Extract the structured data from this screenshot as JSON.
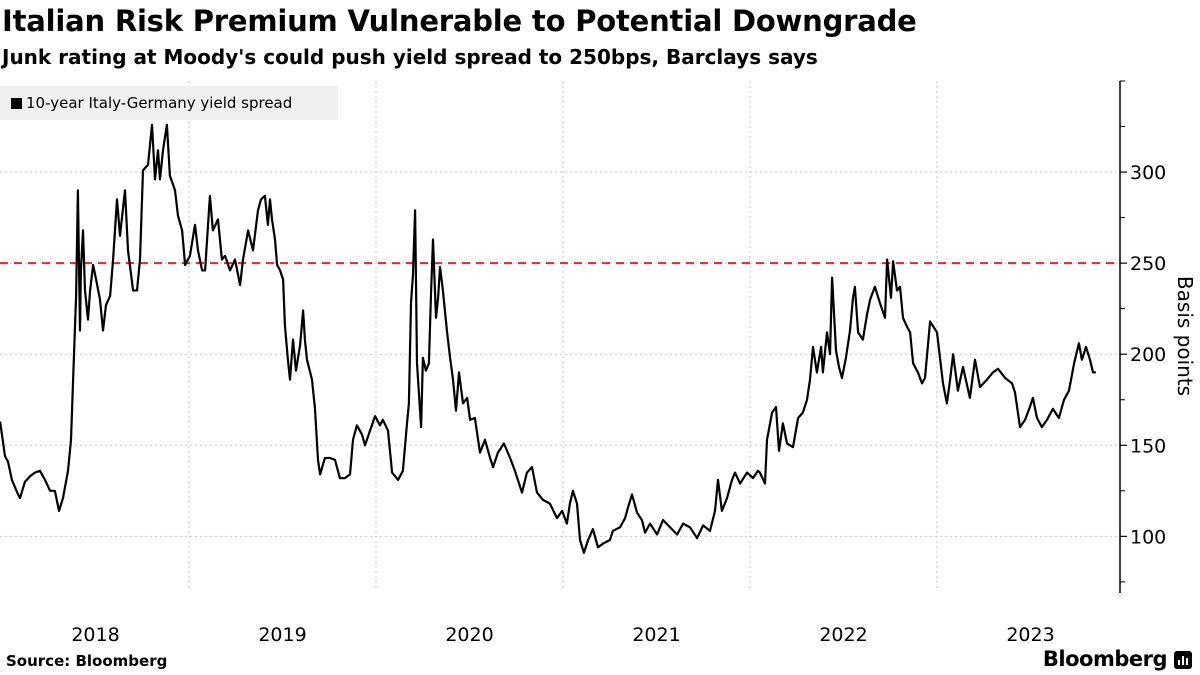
{
  "header": {
    "title": "Italian Risk Premium Vulnerable to Potential Downgrade",
    "subtitle": "Junk rating at Moody's could push yield spread to 250bps, Barclays says"
  },
  "footer": {
    "source": "Source: Bloomberg",
    "brand": "Bloomberg"
  },
  "colors": {
    "line": "#000000",
    "reference": "#e8262b",
    "grid": "#c8c8c8",
    "legend_bg": "#f0f0f0"
  },
  "chart_data": {
    "type": "line",
    "title": "Italian Risk Premium Vulnerable to Potential Downgrade",
    "subtitle": "Junk rating at Moody's could push yield spread to 250bps, Barclays says",
    "xlabel": "",
    "ylabel": "Basis points",
    "xlim": [
      2017.99,
      2023.9
    ],
    "ylim": [
      70,
      350
    ],
    "x_ticks": [
      2018,
      2019,
      2020,
      2021,
      2022,
      2023
    ],
    "x_tick_labels": [
      "2018",
      "2019",
      "2020",
      "2021",
      "2022",
      "2023"
    ],
    "y_ticks": [
      100,
      150,
      200,
      250,
      300
    ],
    "y_tick_labels": [
      "100",
      "150",
      "200",
      "250",
      "300"
    ],
    "y_minor_ticks": [
      75,
      125,
      175,
      225,
      275,
      325,
      350
    ],
    "grid": true,
    "legend": {
      "placement": "top-left",
      "entries": [
        "10-year Italy-Germany yield spread"
      ]
    },
    "reference_line": {
      "value": 250,
      "style": "dashed",
      "color": "#e8262b"
    },
    "series": [
      {
        "name": "10-year Italy-Germany yield spread",
        "points": [
          [
            2017.99,
            163
          ],
          [
            2018.016,
            144
          ],
          [
            2018.032,
            141
          ],
          [
            2018.053,
            131
          ],
          [
            2018.086,
            123
          ],
          [
            2018.096,
            121
          ],
          [
            2018.123,
            130
          ],
          [
            2018.15,
            133
          ],
          [
            2018.176,
            135
          ],
          [
            2018.203,
            136
          ],
          [
            2018.23,
            131
          ],
          [
            2018.257,
            125
          ],
          [
            2018.283,
            125
          ],
          [
            2018.305,
            114
          ],
          [
            2018.326,
            121
          ],
          [
            2018.353,
            136
          ],
          [
            2018.369,
            153
          ],
          [
            2018.38,
            186
          ],
          [
            2018.396,
            232
          ],
          [
            2018.406,
            290
          ],
          [
            2018.417,
            213
          ],
          [
            2018.422,
            246
          ],
          [
            2018.433,
            268
          ],
          [
            2018.444,
            235
          ],
          [
            2018.46,
            219
          ],
          [
            2018.471,
            235
          ],
          [
            2018.487,
            249
          ],
          [
            2018.503,
            241
          ],
          [
            2018.524,
            230
          ],
          [
            2018.54,
            213
          ],
          [
            2018.556,
            227
          ],
          [
            2018.578,
            232
          ],
          [
            2018.594,
            252
          ],
          [
            2018.615,
            285
          ],
          [
            2018.631,
            265
          ],
          [
            2018.658,
            290
          ],
          [
            2018.674,
            257
          ],
          [
            2018.701,
            235
          ],
          [
            2018.722,
            235
          ],
          [
            2018.738,
            252
          ],
          [
            2018.754,
            301
          ],
          [
            2018.781,
            304
          ],
          [
            2018.802,
            326
          ],
          [
            2018.818,
            296
          ],
          [
            2018.834,
            312
          ],
          [
            2018.845,
            296
          ],
          [
            2018.861,
            312
          ],
          [
            2018.882,
            326
          ],
          [
            2018.898,
            298
          ],
          [
            2018.925,
            290
          ],
          [
            2018.941,
            276
          ],
          [
            2018.963,
            268
          ],
          [
            2018.979,
            249
          ],
          [
            2019.005,
            254
          ],
          [
            2019.032,
            271
          ],
          [
            2019.048,
            257
          ],
          [
            2019.07,
            246
          ],
          [
            2019.086,
            246
          ],
          [
            2019.112,
            287
          ],
          [
            2019.128,
            268
          ],
          [
            2019.155,
            274
          ],
          [
            2019.176,
            252
          ],
          [
            2019.193,
            254
          ],
          [
            2019.219,
            246
          ],
          [
            2019.246,
            252
          ],
          [
            2019.273,
            238
          ],
          [
            2019.289,
            252
          ],
          [
            2019.316,
            268
          ],
          [
            2019.342,
            257
          ],
          [
            2019.369,
            279
          ],
          [
            2019.385,
            285
          ],
          [
            2019.406,
            287
          ],
          [
            2019.422,
            271
          ],
          [
            2019.433,
            285
          ],
          [
            2019.444,
            274
          ],
          [
            2019.46,
            263
          ],
          [
            2019.471,
            249
          ],
          [
            2019.487,
            246
          ],
          [
            2019.503,
            241
          ],
          [
            2019.513,
            216
          ],
          [
            2019.529,
            197
          ],
          [
            2019.54,
            186
          ],
          [
            2019.556,
            208
          ],
          [
            2019.572,
            191
          ],
          [
            2019.594,
            205
          ],
          [
            2019.61,
            224
          ],
          [
            2019.62,
            208
          ],
          [
            2019.631,
            197
          ],
          [
            2019.658,
            186
          ],
          [
            2019.674,
            170
          ],
          [
            2019.69,
            142
          ],
          [
            2019.701,
            134
          ],
          [
            2019.727,
            143
          ],
          [
            2019.754,
            143
          ],
          [
            2019.781,
            142
          ],
          [
            2019.807,
            132
          ],
          [
            2019.834,
            132
          ],
          [
            2019.861,
            134
          ],
          [
            2019.877,
            153
          ],
          [
            2019.898,
            161
          ],
          [
            2019.925,
            156
          ],
          [
            2019.941,
            150
          ],
          [
            2019.968,
            158
          ],
          [
            2019.995,
            166
          ],
          [
            2020.021,
            161
          ],
          [
            2020.037,
            164
          ],
          [
            2020.064,
            158
          ],
          [
            2020.086,
            135
          ],
          [
            2020.118,
            131
          ],
          [
            2020.144,
            136
          ],
          [
            2020.166,
            162
          ],
          [
            2020.176,
            173
          ],
          [
            2020.187,
            228
          ],
          [
            2020.198,
            244
          ],
          [
            2020.209,
            279
          ],
          [
            2020.219,
            195
          ],
          [
            2020.241,
            160
          ],
          [
            2020.251,
            198
          ],
          [
            2020.267,
            191
          ],
          [
            2020.283,
            195
          ],
          [
            2020.294,
            233
          ],
          [
            2020.305,
            263
          ],
          [
            2020.321,
            220
          ],
          [
            2020.332,
            231
          ],
          [
            2020.342,
            248
          ],
          [
            2020.358,
            235
          ],
          [
            2020.38,
            212
          ],
          [
            2020.396,
            198
          ],
          [
            2020.412,
            186
          ],
          [
            2020.428,
            169
          ],
          [
            2020.444,
            190
          ],
          [
            2020.465,
            173
          ],
          [
            2020.487,
            176
          ],
          [
            2020.503,
            164
          ],
          [
            2020.529,
            165
          ],
          [
            2020.556,
            146
          ],
          [
            2020.583,
            153
          ],
          [
            2020.61,
            143
          ],
          [
            2020.626,
            138
          ],
          [
            2020.652,
            146
          ],
          [
            2020.684,
            151
          ],
          [
            2020.717,
            143
          ],
          [
            2020.743,
            136
          ],
          [
            2020.781,
            124
          ],
          [
            2020.807,
            135
          ],
          [
            2020.834,
            138
          ],
          [
            2020.861,
            124
          ],
          [
            2020.893,
            120
          ],
          [
            2020.93,
            118
          ],
          [
            2020.968,
            110
          ],
          [
            2020.995,
            114
          ],
          [
            2021.021,
            107
          ],
          [
            2021.037,
            118
          ],
          [
            2021.053,
            125
          ],
          [
            2021.075,
            118
          ],
          [
            2021.091,
            98
          ],
          [
            2021.112,
            91
          ],
          [
            2021.134,
            98
          ],
          [
            2021.16,
            104
          ],
          [
            2021.187,
            94
          ],
          [
            2021.214,
            96
          ],
          [
            2021.251,
            98
          ],
          [
            2021.267,
            103
          ],
          [
            2021.305,
            105
          ],
          [
            2021.332,
            110
          ],
          [
            2021.348,
            116
          ],
          [
            2021.369,
            123
          ],
          [
            2021.396,
            113
          ],
          [
            2021.422,
            109
          ],
          [
            2021.439,
            102
          ],
          [
            2021.465,
            107
          ],
          [
            2021.503,
            101
          ],
          [
            2021.535,
            109
          ],
          [
            2021.572,
            105
          ],
          [
            2021.61,
            101
          ],
          [
            2021.642,
            107
          ],
          [
            2021.679,
            105
          ],
          [
            2021.717,
            99
          ],
          [
            2021.749,
            106
          ],
          [
            2021.786,
            103
          ],
          [
            2021.813,
            114
          ],
          [
            2021.829,
            131
          ],
          [
            2021.85,
            114
          ],
          [
            2021.877,
            121
          ],
          [
            2021.904,
            131
          ],
          [
            2021.92,
            135
          ],
          [
            2021.947,
            129
          ],
          [
            2021.984,
            135
          ],
          [
            2022.016,
            132
          ],
          [
            2022.043,
            136
          ],
          [
            2022.053,
            135
          ],
          [
            2022.08,
            129
          ],
          [
            2022.091,
            153
          ],
          [
            2022.118,
            168
          ],
          [
            2022.139,
            171
          ],
          [
            2022.155,
            147
          ],
          [
            2022.176,
            162
          ],
          [
            2022.198,
            151
          ],
          [
            2022.23,
            149
          ],
          [
            2022.257,
            165
          ],
          [
            2022.283,
            168
          ],
          [
            2022.305,
            175
          ],
          [
            2022.321,
            186
          ],
          [
            2022.337,
            204
          ],
          [
            2022.358,
            190
          ],
          [
            2022.38,
            204
          ],
          [
            2022.39,
            190
          ],
          [
            2022.412,
            212
          ],
          [
            2022.428,
            200
          ],
          [
            2022.439,
            242
          ],
          [
            2022.46,
            202
          ],
          [
            2022.476,
            193
          ],
          [
            2022.492,
            187
          ],
          [
            2022.513,
            198
          ],
          [
            2022.535,
            213
          ],
          [
            2022.551,
            231
          ],
          [
            2022.561,
            237
          ],
          [
            2022.578,
            212
          ],
          [
            2022.604,
            208
          ],
          [
            2022.626,
            222
          ],
          [
            2022.642,
            230
          ],
          [
            2022.668,
            237
          ],
          [
            2022.695,
            228
          ],
          [
            2022.722,
            220
          ],
          [
            2022.733,
            252
          ],
          [
            2022.754,
            231
          ],
          [
            2022.765,
            251
          ],
          [
            2022.786,
            235
          ],
          [
            2022.802,
            237
          ],
          [
            2022.818,
            220
          ],
          [
            2022.84,
            215
          ],
          [
            2022.856,
            212
          ],
          [
            2022.872,
            195
          ],
          [
            2022.898,
            190
          ],
          [
            2022.92,
            184
          ],
          [
            2022.936,
            187
          ],
          [
            2022.963,
            218
          ],
          [
            2023.0,
            212
          ],
          [
            2023.016,
            198
          ],
          [
            2023.032,
            184
          ],
          [
            2023.053,
            173
          ],
          [
            2023.07,
            186
          ],
          [
            2023.086,
            200
          ],
          [
            2023.112,
            180
          ],
          [
            2023.139,
            193
          ],
          [
            2023.176,
            176
          ],
          [
            2023.203,
            197
          ],
          [
            2023.23,
            182
          ],
          [
            2023.267,
            186
          ],
          [
            2023.299,
            190
          ],
          [
            2023.326,
            192
          ],
          [
            2023.364,
            187
          ],
          [
            2023.401,
            184
          ],
          [
            2023.417,
            179
          ],
          [
            2023.444,
            160
          ],
          [
            2023.471,
            164
          ],
          [
            2023.497,
            171
          ],
          [
            2023.513,
            176
          ],
          [
            2023.535,
            165
          ],
          [
            2023.561,
            160
          ],
          [
            2023.588,
            164
          ],
          [
            2023.62,
            170
          ],
          [
            2023.652,
            165
          ],
          [
            2023.679,
            175
          ],
          [
            2023.706,
            180
          ],
          [
            2023.733,
            195
          ],
          [
            2023.759,
            206
          ],
          [
            2023.775,
            197
          ],
          [
            2023.797,
            204
          ],
          [
            2023.818,
            197
          ],
          [
            2023.834,
            190
          ],
          [
            2023.85,
            190
          ]
        ]
      }
    ]
  }
}
